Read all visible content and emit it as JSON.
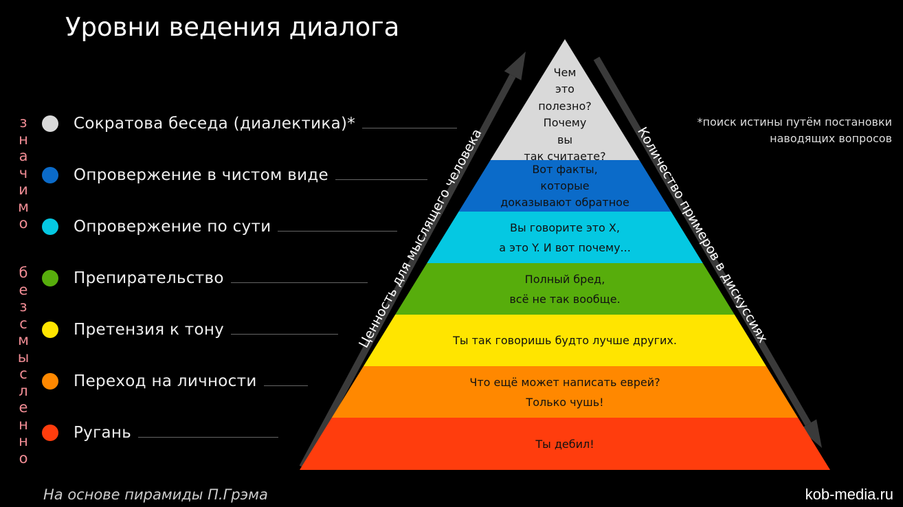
{
  "title": "Уровни ведения диалога",
  "side_labels": {
    "top": "значимо",
    "bottom": "безсмысленно"
  },
  "levels": [
    {
      "label": "Сократова беседа (диалектика)*",
      "color": "#d9d9d9",
      "pyramid_text": [
        "Чем",
        "это",
        "полезно?",
        "Почему",
        "вы",
        "так считаете?"
      ]
    },
    {
      "label": "Опровержение в чистом виде",
      "color": "#0b6bc9",
      "pyramid_text": [
        "Вот факты,",
        "которые",
        "доказывают обратное"
      ]
    },
    {
      "label": "Опровержение по сути",
      "color": "#05c8e2",
      "pyramid_text": [
        "Вы говорите это X,",
        "а это Y. И вот почему..."
      ]
    },
    {
      "label": "Препирательство",
      "color": "#57ad0c",
      "pyramid_text": [
        "Полный бред,",
        "всё не так вообще."
      ]
    },
    {
      "label": "Претензия к тону",
      "color": "#ffe500",
      "pyramid_text": [
        "Ты так говоришь будто лучше других."
      ]
    },
    {
      "label": "Переход на личности",
      "color": "#ff8800",
      "pyramid_text": [
        "Что ещё может написать еврей?",
        "Только чушь!"
      ]
    },
    {
      "label": "Ругань",
      "color": "#ff3d0d",
      "pyramid_text": [
        "Ты дебил!"
      ]
    }
  ],
  "arrows": {
    "left": "Ценность для мыслящего человека",
    "right": "Количество примеров в дискуссиях"
  },
  "note": [
    "*поиск истины путём постановки",
    "наводящих вопросов"
  ],
  "footer": {
    "source": "На основе пирамиды П.Грэма",
    "site": "kob-media.ru"
  }
}
